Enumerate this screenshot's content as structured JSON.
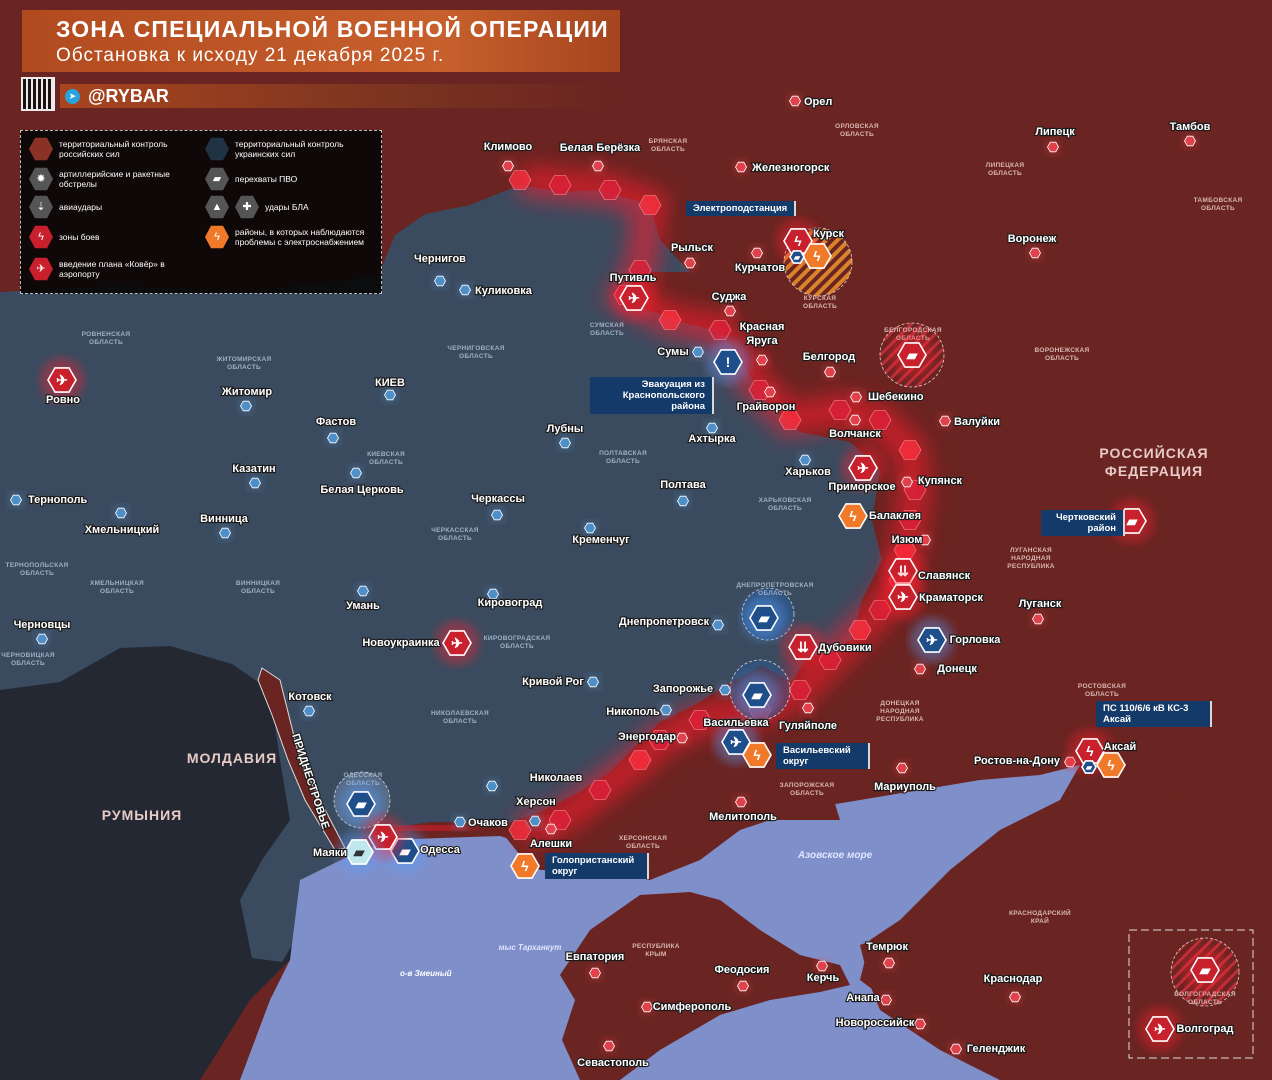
{
  "header": {
    "title": "ЗОНА СПЕЦИАЛЬНОЙ ВОЕННОЙ ОПЕРАЦИИ",
    "subtitle": "Обстановка к исходу 21 декабря 2025 г.",
    "brand": "@RYBAR"
  },
  "colors": {
    "russia": "#6a2421",
    "ukraine": "#3b4b5f",
    "sea": "#7f8fca",
    "other": "#242a35",
    "front": "#ff2030",
    "power": "#f07a2a",
    "ua_marker": "#1f4f8a"
  },
  "legend": [
    {
      "label": "территориальный контроль российских сил",
      "icon": "russian-control-hex"
    },
    {
      "label": "территориальный контроль украинских сил",
      "icon": "ukrainian-control-hex"
    },
    {
      "label": "артиллерийские и ракетные обстрелы",
      "icon": "explosion-icon"
    },
    {
      "label": "перехваты ПВО",
      "icon": "air-defense-icon"
    },
    {
      "label": "авиаудары",
      "icon": "bombs-icon"
    },
    {
      "label": "удары БЛА",
      "icon": "drone-icon"
    },
    {
      "label": "зоны боев",
      "icon": "lightning-icon"
    },
    {
      "label": "районы, в которых наблюдаются проблемы с электроснабжением",
      "icon": "power-lightning-icon"
    },
    {
      "label": "введение плана «Ковёр» в аэропорту",
      "icon": "airplane-icon"
    }
  ],
  "cities": [
    "Орел",
    "Липецк",
    "Тамбов",
    "Климово",
    "Белая Берёзка",
    "Железногорск",
    "Рыльск",
    "Курчатов",
    "Курск",
    "Воронеж",
    "Чернигов",
    "Куликовка",
    "Путивль",
    "Суджа",
    "Красная Яруга",
    "Сумы",
    "Белгород",
    "Ровно",
    "Житомир",
    "Шебекино",
    "Валуйки",
    "КИЕВ",
    "Фастов",
    "Лубны",
    "Грайворон",
    "Волчанск",
    "Ахтырка",
    "Казатин",
    "Харьков",
    "Белая Церковь",
    "Полтава",
    "Приморское",
    "Купянск",
    "Тернополь",
    "Черкассы",
    "Балаклея",
    "Хмельницкий",
    "Винница",
    "Изюм",
    "Кременчуг",
    "Славянск",
    "Краматорск",
    "Луганск",
    "Умань",
    "Кировоград",
    "Черновцы",
    "Днепропетровск",
    "Горловка",
    "Новоукраинка",
    "Дубовики",
    "Донецк",
    "Кривой Рог",
    "Котовск",
    "Запорожье",
    "Никополь",
    "Васильевка",
    "Гуляйполе",
    "Энергодар",
    "Аксай",
    "Ростов-на-Дону",
    "Мариуполь",
    "Николаев",
    "Очаков",
    "Херсон",
    "Мелитополь",
    "Алешки",
    "Одесса",
    "Маяки",
    "Евпатория",
    "Феодосия",
    "Керчь",
    "Темрюк",
    "Краснодар",
    "Анапа",
    "Симферополь",
    "Новороссийск",
    "Геленджик",
    "Севастополь",
    "Волгоград"
  ],
  "regions": [
    "ОРЛОВСКАЯ ОБЛАСТЬ",
    "БРЯНСКАЯ ОБЛАСТЬ",
    "ЛИПЕЦКАЯ ОБЛАСТЬ",
    "ТАМБОВСКАЯ ОБЛАСТЬ",
    "КУРСКАЯ ОБЛАСТЬ",
    "СУМСКАЯ ОБЛАСТЬ",
    "БЕЛГОРОДСКАЯ ОБЛАСТЬ",
    "ЧЕРНИГОВСКАЯ ОБЛАСТЬ",
    "ВОРОНЕЖСКАЯ ОБЛАСТЬ",
    "РОВНЕНСКАЯ ОБЛАСТЬ",
    "ЖИТОМИРСКАЯ ОБЛАСТЬ",
    "КИЕВСКАЯ ОБЛАСТЬ",
    "ПОЛТАВСКАЯ ОБЛАСТЬ",
    "ХАРЬКОВСКАЯ ОБЛАСТЬ",
    "ЧЕРКАССКАЯ ОБЛАСТЬ",
    "ЛУГАНСКАЯ НАРОДНАЯ РЕСПУБЛИКА",
    "ТЕРНОПОЛЬСКАЯ ОБЛАСТЬ",
    "ХМЕЛЬНИЦКАЯ ОБЛАСТЬ",
    "ВИННИЦКАЯ ОБЛАСТЬ",
    "ДНЕПРОПЕТРОВСКАЯ ОБЛАСТЬ",
    "КИРОВОГРАДСКАЯ ОБЛАСТЬ",
    "ЧЕРНОВИЦКАЯ ОБЛАСТЬ",
    "ДОНЕЦКАЯ НАРОДНАЯ РЕСПУБЛИКА",
    "РОСТОВСКАЯ ОБЛАСТЬ",
    "НИКОЛАЕВСКАЯ ОБЛАСТЬ",
    "ОДЕССКАЯ ОБЛАСТЬ",
    "ЗАПОРОЖСКАЯ ОБЛАСТЬ",
    "ХЕРСОНСКАЯ ОБЛАСТЬ",
    "КРАСНОДАРСКИЙ КРАЙ",
    "РЕСПУБЛИКА КРЫМ",
    "ВОЛГОГРАДСКАЯ ОБЛАСТЬ"
  ],
  "countries": [
    "РОССИЙСКАЯ ФЕДЕРАЦИЯ",
    "МОЛДАВИЯ",
    "РУМЫНИЯ",
    "ПРИДНЕСТРОВЬЕ"
  ],
  "water": [
    "Азовское море",
    "мыс Тарханкут",
    "о-в Змеиный"
  ],
  "callouts": [
    "Электроподстанция",
    "Эвакуация из Краснопольского района",
    "Чертковский район",
    "ПС 110/6/6 кВ КС-3 Аксай",
    "Васильевский округ",
    "Голопристанский округ"
  ],
  "markers": [
    {
      "place": "Курск",
      "icon": "lightning-icon",
      "side": "ru"
    },
    {
      "place": "Курск",
      "icon": "power-lightning-icon",
      "side": "power"
    },
    {
      "place": "Курск",
      "icon": "air-defense-icon",
      "side": "ua"
    },
    {
      "place": "Белгородская область",
      "icon": "air-defense-icon",
      "side": "ru"
    },
    {
      "place": "Путивль",
      "icon": "drone-icon",
      "side": "ru"
    },
    {
      "place": "Сумы",
      "icon": "alert-icon",
      "side": "ua"
    },
    {
      "place": "Ровно",
      "icon": "drone-icon",
      "side": "ru"
    },
    {
      "place": "Приморское",
      "icon": "drone-icon",
      "side": "ru"
    },
    {
      "place": "Балаклея",
      "icon": "power-lightning-icon",
      "side": "power"
    },
    {
      "place": "Славянск",
      "icon": "bombs-icon",
      "side": "ru"
    },
    {
      "place": "Краматорск",
      "icon": "drone-icon",
      "side": "ru"
    },
    {
      "place": "Горловка",
      "icon": "drone-icon",
      "side": "ua"
    },
    {
      "place": "Дубовики",
      "icon": "bombs-icon",
      "side": "ru"
    },
    {
      "place": "Днепропетровская область",
      "icon": "air-defense-icon",
      "side": "ua"
    },
    {
      "place": "Запорожье",
      "icon": "air-defense-icon",
      "side": "ua"
    },
    {
      "place": "Васильевка",
      "icon": "drone-icon",
      "side": "ua"
    },
    {
      "place": "Васильевка",
      "icon": "power-lightning-icon",
      "side": "power"
    },
    {
      "place": "Новоукраинка",
      "icon": "drone-icon",
      "side": "ru"
    },
    {
      "place": "Одесская область",
      "icon": "air-defense-icon",
      "side": "ua"
    },
    {
      "place": "Одесса",
      "icon": "air-defense-icon",
      "side": "ua"
    },
    {
      "place": "Маяки",
      "icon": "drone-icon",
      "side": "ru"
    },
    {
      "place": "Маяки",
      "icon": "air-defense-icon",
      "side": "light"
    },
    {
      "place": "Голопристанский округ",
      "icon": "power-lightning-icon",
      "side": "power"
    },
    {
      "place": "Чертковский район",
      "icon": "air-defense-icon",
      "side": "ru"
    },
    {
      "place": "Аксай",
      "icon": "lightning-icon",
      "side": "ru"
    },
    {
      "place": "Аксай",
      "icon": "power-lightning-icon",
      "side": "power"
    },
    {
      "place": "Аксай",
      "icon": "air-defense-icon",
      "side": "ua"
    },
    {
      "place": "Волгоградская область",
      "icon": "air-defense-icon",
      "side": "ru"
    },
    {
      "place": "Волгоград",
      "icon": "airplane-icon",
      "side": "ru"
    }
  ]
}
